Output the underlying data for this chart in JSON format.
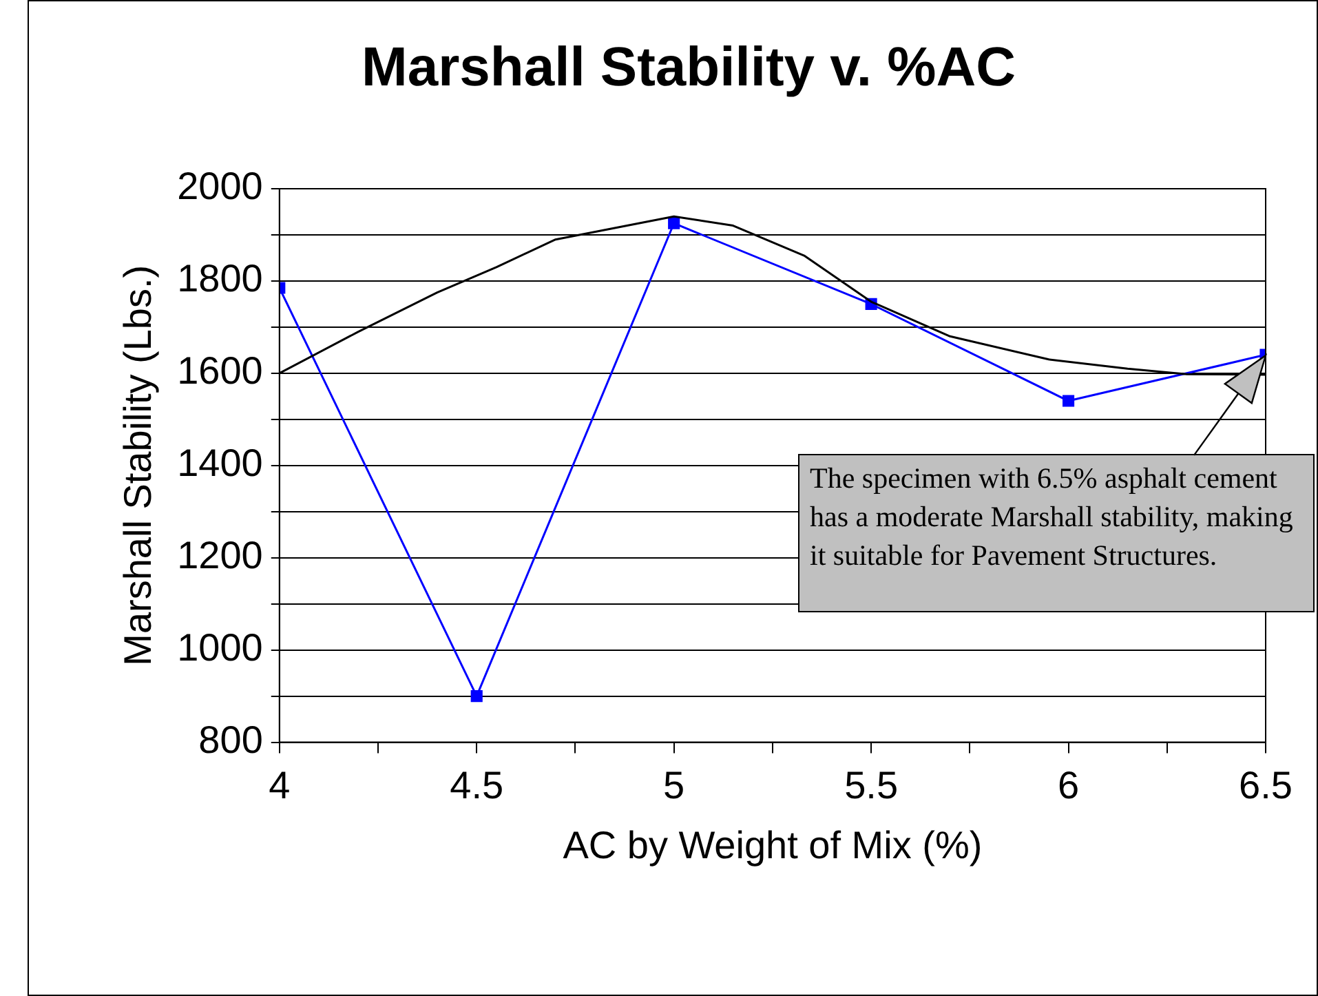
{
  "chart_data": {
    "type": "line",
    "title": "Marshall Stability v. %AC",
    "xlabel": "AC by Weight of Mix (%)",
    "ylabel": "Marshall Stability (Lbs.)",
    "xlim": [
      4,
      6.5
    ],
    "xticks": [
      4,
      {
        "value": 4.25,
        "label": null
      },
      4.5,
      {
        "value": 4.75,
        "label": null
      },
      5,
      {
        "value": 5.25,
        "label": null
      },
      5.5,
      {
        "value": 5.75,
        "label": null
      },
      6,
      {
        "value": 6.25,
        "label": null
      },
      6.5
    ],
    "ylim": [
      800,
      2000
    ],
    "yticks": [
      800,
      {
        "value": 900,
        "label": null
      },
      1000,
      {
        "value": 1100,
        "label": null
      },
      1200,
      {
        "value": 1300,
        "label": null
      },
      1400,
      {
        "value": 1500,
        "label": null
      },
      1600,
      {
        "value": 1700,
        "label": null
      },
      1800,
      {
        "value": 1900,
        "label": null
      },
      2000
    ],
    "grid": "y",
    "marker": "square",
    "line_style": "solid",
    "series": [
      {
        "color": "#000000",
        "marker": "none",
        "x": [
          4,
          4.2,
          4.4,
          4.55,
          4.7,
          4.85,
          5,
          5.15,
          5.33,
          5.5,
          5.7,
          5.95,
          6.15,
          6.3,
          6.5
        ],
        "values": [
          1600,
          1690,
          1775,
          1830,
          1890,
          1915,
          1940,
          1920,
          1855,
          1755,
          1680,
          1630,
          1610,
          1598,
          1597
        ]
      },
      {
        "color": "#0000ff",
        "x": [
          4,
          4.5,
          5,
          5.5,
          6,
          6.5
        ],
        "values": [
          1785,
          900,
          1925,
          1750,
          1540,
          1640
        ]
      }
    ],
    "annotations": [
      "The specimen with 6.5% asphalt cement has a moderate Marshall stability, making it suitable for Pavement Structures."
    ]
  }
}
